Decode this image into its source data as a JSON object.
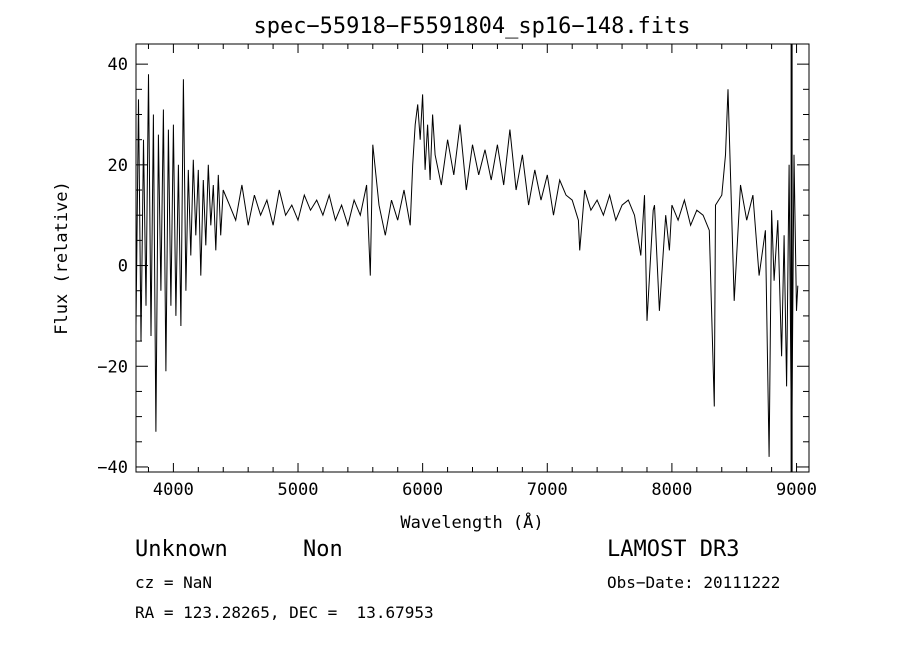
{
  "chart_data": {
    "type": "line",
    "title": "spec−55918−F5591804_sp16−148.fits",
    "xlabel": "Wavelength (Å)",
    "ylabel": "Flux (relative)",
    "xlim": [
      3700,
      9100
    ],
    "ylim": [
      -41,
      44
    ],
    "xticks": [
      4000,
      5000,
      6000,
      7000,
      8000,
      9000
    ],
    "yticks": [
      -40,
      -20,
      0,
      20,
      40
    ],
    "ytick_labels": [
      "−40",
      "−20",
      "0",
      "20",
      "40"
    ],
    "series": [
      {
        "name": "spectrum",
        "x": [
          3700,
          3720,
          3740,
          3760,
          3780,
          3800,
          3820,
          3840,
          3860,
          3880,
          3900,
          3920,
          3940,
          3960,
          3980,
          4000,
          4020,
          4040,
          4060,
          4080,
          4100,
          4120,
          4140,
          4160,
          4180,
          4200,
          4220,
          4240,
          4260,
          4280,
          4300,
          4320,
          4340,
          4360,
          4380,
          4400,
          4450,
          4500,
          4550,
          4600,
          4650,
          4700,
          4750,
          4800,
          4850,
          4900,
          4950,
          5000,
          5050,
          5100,
          5150,
          5200,
          5250,
          5300,
          5350,
          5400,
          5450,
          5500,
          5550,
          5580,
          5600,
          5650,
          5700,
          5750,
          5800,
          5850,
          5900,
          5920,
          5940,
          5960,
          5980,
          6000,
          6020,
          6040,
          6060,
          6080,
          6100,
          6150,
          6200,
          6250,
          6300,
          6350,
          6400,
          6450,
          6500,
          6550,
          6600,
          6650,
          6700,
          6750,
          6800,
          6850,
          6900,
          6950,
          7000,
          7050,
          7100,
          7150,
          7200,
          7250,
          7260,
          7300,
          7350,
          7400,
          7450,
          7500,
          7550,
          7600,
          7650,
          7700,
          7750,
          7780,
          7800,
          7850,
          7860,
          7900,
          7950,
          7980,
          8000,
          8050,
          8100,
          8150,
          8200,
          8250,
          8300,
          8340,
          8350,
          8400,
          8430,
          8450,
          8500,
          8550,
          8600,
          8650,
          8700,
          8750,
          8780,
          8800,
          8820,
          8850,
          8880,
          8900,
          8920,
          8940,
          8960,
          8980,
          9000,
          9010
        ],
        "y": [
          -12,
          33,
          -15,
          25,
          -8,
          38,
          -14,
          30,
          -33,
          26,
          -5,
          31,
          -21,
          27,
          -8,
          28,
          -10,
          20,
          -12,
          37,
          -5,
          19,
          2,
          21,
          6,
          19,
          -2,
          17,
          4,
          20,
          8,
          16,
          3,
          18,
          6,
          15,
          12,
          9,
          16,
          8,
          14,
          10,
          13,
          8,
          15,
          10,
          12,
          9,
          14,
          11,
          13,
          10,
          14,
          9,
          12,
          8,
          13,
          10,
          16,
          -2,
          24,
          12,
          6,
          13,
          9,
          15,
          8,
          20,
          28,
          32,
          25,
          34,
          19,
          28,
          17,
          30,
          22,
          16,
          25,
          18,
          28,
          15,
          24,
          18,
          23,
          17,
          24,
          16,
          27,
          15,
          22,
          12,
          19,
          13,
          18,
          10,
          17,
          14,
          13,
          9,
          3,
          15,
          11,
          13,
          10,
          14,
          9,
          12,
          13,
          10,
          2,
          14,
          -11,
          11,
          12,
          -9,
          10,
          3,
          12,
          9,
          13,
          8,
          11,
          10,
          7,
          -28,
          12,
          14,
          22,
          35,
          -7,
          16,
          9,
          14,
          -2,
          7,
          -38,
          11,
          -3,
          9,
          -18,
          6,
          -24,
          20,
          -39,
          22,
          -9,
          -4
        ]
      },
      {
        "name": "edge-spike",
        "x": [
          8960,
          8960
        ],
        "y": [
          -41,
          44
        ]
      }
    ]
  },
  "caption": {
    "object_class": "Unknown",
    "subclass": "Non",
    "survey": "LAMOST DR3",
    "redshift_line": "cz = NaN",
    "obs_date_line": "Obs−Date: 20111222",
    "coords_line": "RA = 123.28265, DEC =  13.67953"
  }
}
